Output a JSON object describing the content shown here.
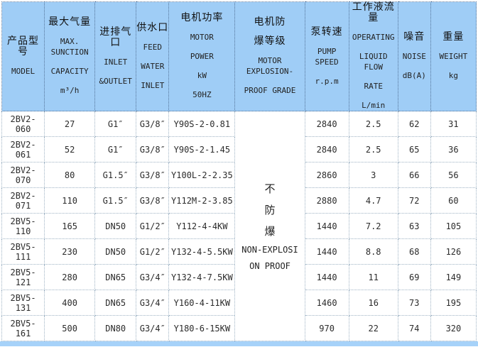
{
  "table": {
    "header": [
      {
        "lines": [
          "产品型号",
          "MODEL"
        ]
      },
      {
        "lines": [
          "最大气量",
          "MAX. SUNCTION",
          "CAPACITY",
          "m³/h"
        ]
      },
      {
        "lines": [
          "进排气口",
          "INLET",
          "&OUTLET"
        ]
      },
      {
        "lines": [
          "供水口",
          "FEED",
          "WATER",
          "INLET"
        ]
      },
      {
        "lines": [
          "电机功率",
          "MOTOR",
          "POWER",
          "kW",
          "50HZ"
        ]
      },
      {
        "lines": [
          "电机防",
          "爆等级",
          "MOTOR EXPLOSION-",
          "PROOF GRADE"
        ]
      },
      {
        "lines": [
          "泵转速",
          "PUMP SPEED",
          "r.p.m"
        ]
      },
      {
        "lines": [
          "工作液流量",
          "OPERATING",
          "LIQUID FLOW",
          "RATE",
          "L/min"
        ]
      },
      {
        "lines": [
          "噪音",
          "NOISE",
          "dB(A)"
        ]
      },
      {
        "lines": [
          "重量",
          "WEIGHT",
          "kg"
        ]
      }
    ],
    "explosion_cell": {
      "lines": [
        "不",
        "防",
        "爆",
        "NON-EXPLOSI",
        "ON PROOF"
      ]
    },
    "rows": [
      [
        "2BV2-060",
        "27",
        "G1″",
        "G3/8″",
        "Y90S-2-0.81",
        "2840",
        "2.5",
        "62",
        "31"
      ],
      [
        "2BV2-061",
        "52",
        "G1″",
        "G3/8″",
        "Y90S-2-1.45",
        "2840",
        "2.5",
        "65",
        "36"
      ],
      [
        "2BV2-070",
        "80",
        "G1.5″",
        "G3/8″",
        "Y100L-2-2.35",
        "2860",
        "3",
        "66",
        "56"
      ],
      [
        "2BV2-071",
        "110",
        "G1.5″",
        "G3/8″",
        "Y112M-2-3.85",
        "2880",
        "4.7",
        "72",
        "60"
      ],
      [
        "2BV5-110",
        "165",
        "DN50",
        "G1/2″",
        "Y112-4-4KW",
        "1440",
        "7.2",
        "63",
        "105"
      ],
      [
        "2BV5-111",
        "230",
        "DN50",
        "G1/2″",
        "Y132-4-5.5KW",
        "1440",
        "8.8",
        "68",
        "126"
      ],
      [
        "2BV5-121",
        "280",
        "DN65",
        "G3/4″",
        "Y132-4-7.5KW",
        "1440",
        "11",
        "69",
        "149"
      ],
      [
        "2BV5-131",
        "400",
        "DN65",
        "G3/4″",
        "Y160-4-11KW",
        "1460",
        "16",
        "73",
        "195"
      ],
      [
        "2BV5-161",
        "500",
        "DN80",
        "G3/4″",
        "Y180-6-15KW",
        "970",
        "22",
        "74",
        "320"
      ]
    ],
    "colors": {
      "header_bg": "#9fcdf6",
      "header_border": "#54749a",
      "body_border": "#9fb3c4",
      "bottom_strip": "#a6d2f9"
    }
  }
}
